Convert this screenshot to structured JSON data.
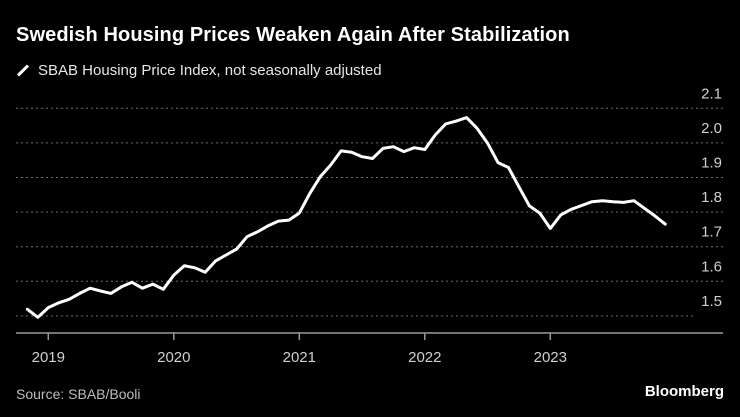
{
  "title": "Swedish Housing Prices Weaken Again After Stabilization",
  "legend_label": "SBAB Housing Price Index, not seasonally adjusted",
  "source": "Source: SBAB/Booli",
  "brand": "Bloomberg",
  "colors": {
    "background": "#000000",
    "line": "#ffffff",
    "grid": "#6e6e6e"
  },
  "chart_data": {
    "type": "line",
    "title": "Swedish Housing Prices Weaken Again After Stabilization",
    "xlabel": "",
    "ylabel": "",
    "ylim": [
      1.45,
      2.1
    ],
    "yticks": [
      1.5,
      1.6,
      1.7,
      1.8,
      1.9,
      2.0,
      2.1
    ],
    "ytick_labels": [
      "1.5",
      "1.6",
      "1.7",
      "1.8",
      "1.9",
      "2.0",
      "2.1"
    ],
    "xticks": [
      "2019",
      "2020",
      "2021",
      "2022",
      "2023"
    ],
    "grid": true,
    "y_axis_side": "right",
    "legend_placement": "top-left",
    "series": [
      {
        "name": "SBAB Housing Price Index, not seasonally adjusted",
        "x": [
          "2018-11",
          "2018-12",
          "2019-01",
          "2019-02",
          "2019-03",
          "2019-04",
          "2019-05",
          "2019-06",
          "2019-07",
          "2019-08",
          "2019-09",
          "2019-10",
          "2019-11",
          "2019-12",
          "2020-01",
          "2020-02",
          "2020-03",
          "2020-04",
          "2020-05",
          "2020-06",
          "2020-07",
          "2020-08",
          "2020-09",
          "2020-10",
          "2020-11",
          "2020-12",
          "2021-01",
          "2021-02",
          "2021-03",
          "2021-04",
          "2021-05",
          "2021-06",
          "2021-07",
          "2021-08",
          "2021-09",
          "2021-10",
          "2021-11",
          "2021-12",
          "2022-01",
          "2022-02",
          "2022-03",
          "2022-04",
          "2022-05",
          "2022-06",
          "2022-07",
          "2022-08",
          "2022-09",
          "2022-10",
          "2022-11",
          "2022-12",
          "2023-01",
          "2023-02",
          "2023-03",
          "2023-04",
          "2023-05",
          "2023-06",
          "2023-07",
          "2023-08",
          "2023-09",
          "2023-10",
          "2023-11",
          "2023-12"
        ],
        "values": [
          1.519,
          1.496,
          1.524,
          1.538,
          1.548,
          1.565,
          1.58,
          1.572,
          1.565,
          1.584,
          1.597,
          1.58,
          1.592,
          1.577,
          1.618,
          1.645,
          1.639,
          1.626,
          1.659,
          1.676,
          1.693,
          1.729,
          1.743,
          1.76,
          1.774,
          1.777,
          1.797,
          1.854,
          1.902,
          1.936,
          1.977,
          1.973,
          1.96,
          1.955,
          1.984,
          1.989,
          1.975,
          1.986,
          1.981,
          2.023,
          2.055,
          2.063,
          2.073,
          2.042,
          1.999,
          1.943,
          1.929,
          1.873,
          1.818,
          1.797,
          1.753,
          1.792,
          1.808,
          1.819,
          1.83,
          1.833,
          1.83,
          1.828,
          1.833,
          1.811,
          1.789,
          1.765
        ]
      }
    ]
  }
}
